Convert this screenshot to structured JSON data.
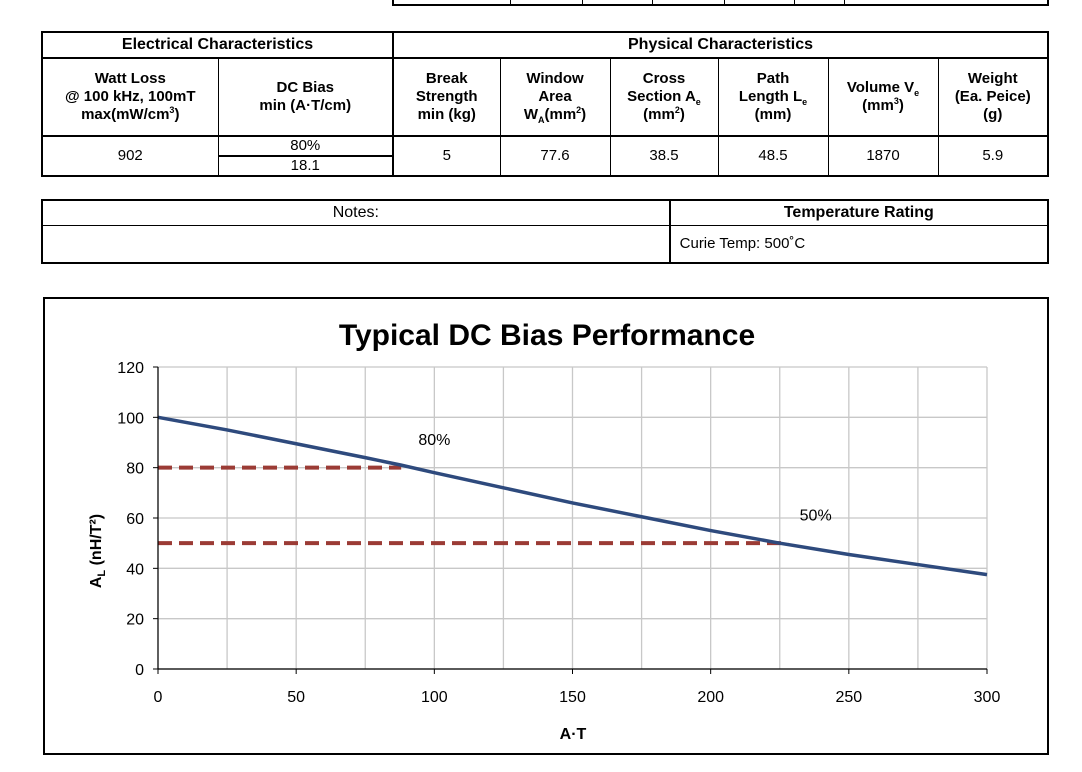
{
  "electrical": {
    "section_title": "Electrical Characteristics",
    "watt_loss": {
      "header": [
        "Watt Loss",
        "@ 100 kHz, 100mT",
        "max(mW/cm",
        "3",
        ")"
      ],
      "value": "902"
    },
    "dc_bias": {
      "header": [
        "DC Bias",
        "min (A·T/cm)"
      ],
      "percent": "80%",
      "value": "18.1"
    }
  },
  "physical": {
    "section_title": "Physical Characteristics",
    "break_strength": {
      "header": [
        "Break",
        "Strength",
        "min (kg)"
      ],
      "value": "5"
    },
    "window_area": {
      "header": [
        "Window",
        "Area",
        "W",
        "A",
        "(mm",
        "2",
        ")"
      ],
      "value": "77.6"
    },
    "cross_section": {
      "header": [
        "Cross",
        "Section A",
        "e",
        "(mm",
        "2",
        ")"
      ],
      "value": "38.5"
    },
    "path_length": {
      "header": [
        "Path",
        "Length L",
        "e",
        "(mm)"
      ],
      "value": "48.5"
    },
    "volume": {
      "header": [
        "Volume V",
        "e",
        "(mm",
        "3",
        ")"
      ],
      "value": "1870"
    },
    "weight": {
      "header": [
        "Weight",
        "(Ea. Peice)",
        "(g)"
      ],
      "value": "5.9"
    }
  },
  "notes": {
    "label": "Notes:",
    "content": ""
  },
  "temperature": {
    "label": "Temperature Rating",
    "curie": "Curie Temp:  500˚C"
  },
  "chart_data": {
    "type": "line",
    "title": "Typical DC Bias Performance",
    "xlabel": "A·T",
    "ylabel_main": "A",
    "ylabel_sub": "L",
    "ylabel_rest": " (nH/T²)",
    "xlim": [
      0,
      300
    ],
    "ylim": [
      0,
      120
    ],
    "xticks": [
      0,
      50,
      100,
      150,
      200,
      250,
      300
    ],
    "yticks": [
      0,
      20,
      40,
      60,
      80,
      100,
      120
    ],
    "grid": true,
    "series": [
      {
        "color": "#2e4a7d",
        "x": [
          0,
          25,
          50,
          75,
          88,
          100,
          125,
          150,
          175,
          200,
          225,
          250,
          275,
          300
        ],
        "y": [
          100,
          95,
          89.5,
          84,
          81,
          78,
          72,
          66,
          60.5,
          55,
          50,
          45.5,
          41.5,
          37.5
        ]
      }
    ],
    "reference_lines": [
      {
        "label": "80%",
        "y": 80,
        "x_end": 88,
        "label_x": 100,
        "label_y": 89,
        "color": "#9b3b35"
      },
      {
        "label": "50%",
        "y": 50,
        "x_end": 228,
        "label_x": 238,
        "label_y": 59,
        "color": "#9b3b35"
      }
    ]
  }
}
